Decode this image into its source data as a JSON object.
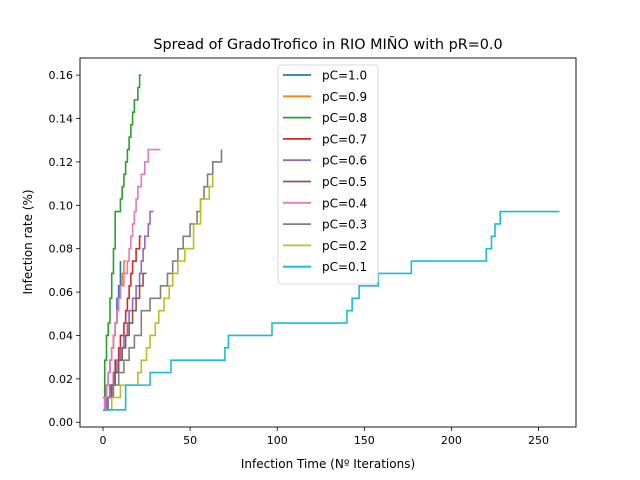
{
  "chart_data": {
    "type": "line",
    "title": "Spread of GradoTrofico in RIO MIÑO with pR=0.0",
    "xlabel": "Infection Time (Nº Iterations)",
    "ylabel": "Infection rate (%)",
    "xlim": [
      -13.2,
      271.5
    ],
    "ylim": [
      -0.0022,
      0.1679
    ],
    "xticks": [
      0,
      50,
      100,
      150,
      200,
      250
    ],
    "yticks": [
      0.0,
      0.02,
      0.04,
      0.06,
      0.08,
      0.1,
      0.12,
      0.14,
      0.16
    ],
    "ytick_labels": [
      "0.00",
      "0.02",
      "0.04",
      "0.06",
      "0.08",
      "0.10",
      "0.12",
      "0.14",
      "0.16"
    ],
    "grid": false,
    "legend_position": "upper-center",
    "series": [
      {
        "name": "pC=1.0",
        "color": "#1f77b4",
        "step": true,
        "x": [
          0,
          1,
          2,
          3,
          4,
          5,
          6,
          7,
          8,
          9,
          10
        ],
        "y": [
          0.0057,
          0.0114,
          0.0171,
          0.0229,
          0.0286,
          0.0343,
          0.04,
          0.0457,
          0.0571,
          0.0629,
          0.0743
        ]
      },
      {
        "name": "pC=0.9",
        "color": "#ff7f0e",
        "step": true,
        "x": [
          0,
          1,
          2,
          3,
          4,
          5,
          6,
          7,
          8,
          9,
          10,
          11,
          12,
          13
        ],
        "y": [
          0.0057,
          0.0114,
          0.0171,
          0.0229,
          0.0286,
          0.0343,
          0.04,
          0.0457,
          0.0514,
          0.0571,
          0.0629,
          0.0686,
          0.0743,
          0.0743
        ]
      },
      {
        "name": "pC=0.8",
        "color": "#2ca02c",
        "step": true,
        "x": [
          0,
          1,
          2,
          3,
          4,
          5,
          6,
          7,
          8,
          9,
          10,
          11,
          12,
          13,
          14,
          15,
          16,
          17,
          18,
          19,
          20,
          21,
          22
        ],
        "y": [
          0.0114,
          0.0286,
          0.04,
          0.0457,
          0.0571,
          0.0686,
          0.08,
          0.0971,
          0.0971,
          0.0971,
          0.1029,
          0.1086,
          0.1143,
          0.12,
          0.1257,
          0.1314,
          0.1371,
          0.1429,
          0.1486,
          0.1486,
          0.1543,
          0.16,
          0.16
        ]
      },
      {
        "name": "pC=0.7",
        "color": "#d62728",
        "step": true,
        "x": [
          0,
          2,
          4,
          6,
          7,
          9,
          10,
          12,
          13,
          14,
          15,
          16,
          17,
          18,
          19,
          20,
          21,
          22
        ],
        "y": [
          0.0057,
          0.0114,
          0.0171,
          0.0229,
          0.0286,
          0.0343,
          0.04,
          0.0457,
          0.0514,
          0.0571,
          0.0629,
          0.0686,
          0.0743,
          0.0743,
          0.08,
          0.08,
          0.0857,
          0.0857
        ]
      },
      {
        "name": "pC=0.6",
        "color": "#9467bd",
        "step": true,
        "x": [
          0,
          2,
          4,
          6,
          8,
          10,
          12,
          14,
          15,
          17,
          19,
          21,
          22,
          23,
          24,
          25,
          26,
          27,
          28,
          29
        ],
        "y": [
          0.0057,
          0.0114,
          0.0171,
          0.0229,
          0.0286,
          0.0343,
          0.04,
          0.0457,
          0.0514,
          0.0571,
          0.0629,
          0.0686,
          0.0743,
          0.08,
          0.0857,
          0.0857,
          0.0914,
          0.0971,
          0.0971,
          0.0971
        ]
      },
      {
        "name": "pC=0.5",
        "color": "#8c564b",
        "step": true,
        "x": [
          0,
          3,
          5,
          7,
          9,
          11,
          13,
          15,
          17,
          19,
          21,
          23,
          25
        ],
        "y": [
          0.0057,
          0.0114,
          0.0171,
          0.0229,
          0.0286,
          0.0343,
          0.04,
          0.0457,
          0.0514,
          0.0571,
          0.0629,
          0.0686,
          0.0686
        ]
      },
      {
        "name": "pC=0.4",
        "color": "#e377c2",
        "step": true,
        "x": [
          0,
          1,
          2,
          3,
          4,
          5,
          6,
          7,
          8,
          9,
          10,
          12,
          14,
          15,
          16,
          17,
          18,
          19,
          20,
          21,
          22,
          23,
          24,
          25,
          26,
          28,
          30,
          33
        ],
        "y": [
          0.0057,
          0.0114,
          0.0171,
          0.0229,
          0.0286,
          0.0343,
          0.04,
          0.0457,
          0.0514,
          0.0571,
          0.0629,
          0.0686,
          0.0743,
          0.08,
          0.0857,
          0.0914,
          0.0971,
          0.1029,
          0.1086,
          0.1086,
          0.1143,
          0.1143,
          0.12,
          0.12,
          0.1257,
          0.1257,
          0.1257,
          0.1257
        ]
      },
      {
        "name": "pC=0.3",
        "color": "#7f7f7f",
        "step": true,
        "x": [
          0,
          3,
          6,
          9,
          12,
          15,
          18,
          22,
          27,
          33,
          37,
          40,
          43,
          46,
          50,
          54,
          56,
          58,
          60,
          63,
          68
        ],
        "y": [
          0.0057,
          0.0114,
          0.0171,
          0.0229,
          0.0286,
          0.0343,
          0.04,
          0.0514,
          0.0571,
          0.0629,
          0.0686,
          0.0743,
          0.08,
          0.0857,
          0.0914,
          0.0971,
          0.1029,
          0.1086,
          0.1143,
          0.12,
          0.1257
        ]
      },
      {
        "name": "pC=0.2",
        "color": "#bcbd22",
        "step": true,
        "x": [
          0,
          5,
          10,
          15,
          20,
          22,
          25,
          27,
          30,
          32,
          35,
          38,
          40,
          43,
          47,
          52,
          56,
          58,
          61,
          63
        ],
        "y": [
          0.0057,
          0.0114,
          0.0171,
          0.0171,
          0.0229,
          0.0286,
          0.0343,
          0.04,
          0.0457,
          0.0514,
          0.0571,
          0.0629,
          0.0686,
          0.0743,
          0.08,
          0.0914,
          0.1029,
          0.1029,
          0.1086,
          0.1143
        ]
      },
      {
        "name": "pC=0.1",
        "color": "#17becf",
        "step": true,
        "x": [
          0,
          13,
          27,
          39,
          70,
          72,
          97,
          140,
          143,
          147,
          155,
          158,
          160,
          177,
          220,
          223,
          225,
          228,
          231,
          262
        ],
        "y": [
          0.0057,
          0.0171,
          0.0229,
          0.0286,
          0.0343,
          0.04,
          0.0457,
          0.0514,
          0.0571,
          0.0629,
          0.0629,
          0.0686,
          0.0686,
          0.0743,
          0.08,
          0.0857,
          0.0914,
          0.0971,
          0.0971,
          0.0971
        ]
      }
    ]
  }
}
